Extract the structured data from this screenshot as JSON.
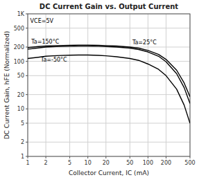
{
  "chart_data": {
    "type": "line",
    "title": "DC Current Gain vs. Output Current",
    "x_label": "Collector Current, IC (mA)",
    "y_label": "DC Current Gain, hFE (Normalized)",
    "log": true,
    "grid": true,
    "xlim": [
      1,
      500
    ],
    "ylim": [
      1,
      1000
    ],
    "xticks": [
      1,
      2,
      5,
      10,
      20,
      50,
      100,
      200,
      500
    ],
    "yticks": [
      1,
      2,
      5,
      10,
      20,
      50,
      100,
      200,
      500,
      {
        "value": 1000,
        "label": "1K"
      }
    ],
    "x": [
      1,
      1.5,
      2,
      3,
      5,
      7,
      10,
      15,
      20,
      30,
      50,
      70,
      100,
      150,
      200,
      300,
      400,
      500
    ],
    "series": [
      {
        "color": "#000000",
        "values": [
          195,
          205,
          210,
          215,
          218,
          220,
          220,
          218,
          215,
          210,
          200,
          190,
          170,
          140,
          110,
          65,
          35,
          18
        ]
      },
      {
        "color": "#000000",
        "values": [
          180,
          192,
          200,
          205,
          208,
          210,
          210,
          208,
          205,
          200,
          190,
          178,
          158,
          128,
          98,
          55,
          28,
          13
        ]
      },
      {
        "color": "#000000",
        "values": [
          115,
          122,
          128,
          132,
          135,
          136,
          136,
          134,
          131,
          125,
          115,
          105,
          88,
          68,
          50,
          26,
          12,
          5
        ]
      }
    ],
    "annotations": [
      {
        "text": "VCE=5V",
        "x": 1.1,
        "y": 650
      },
      {
        "text": "Ta=150°C",
        "x": 1.15,
        "y": 235
      },
      {
        "text": "Ta=25°C",
        "x": 55,
        "y": 232
      },
      {
        "text": "Ta=-50°C",
        "x": 1.65,
        "y": 100
      }
    ]
  }
}
